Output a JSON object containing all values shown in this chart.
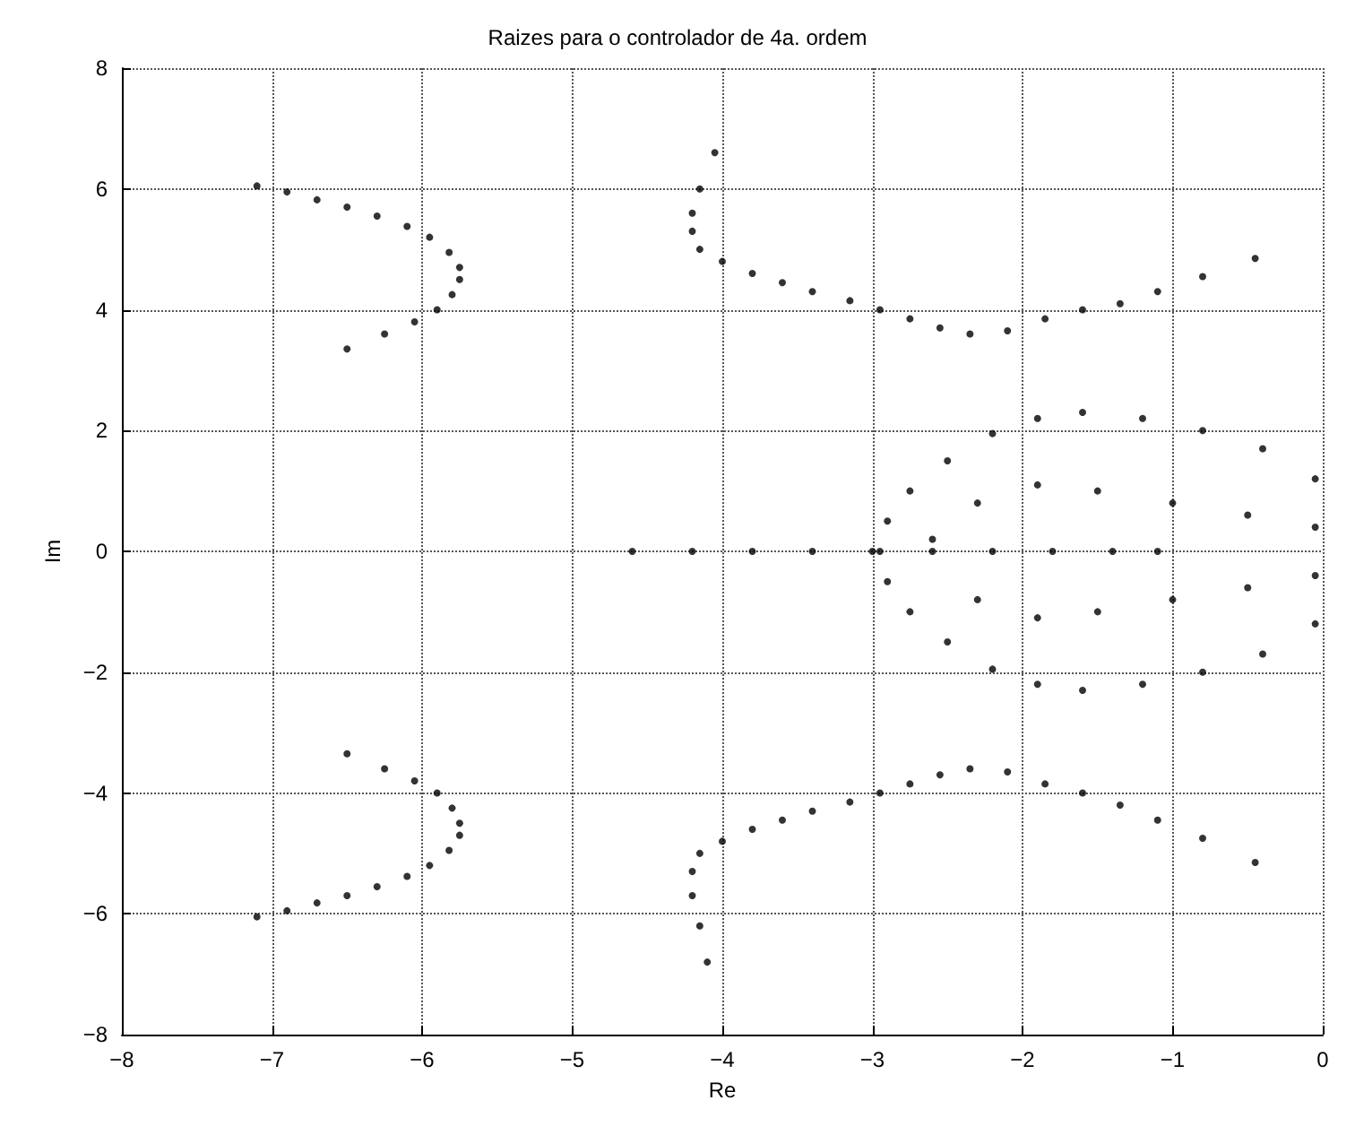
{
  "chart_data": {
    "type": "scatter",
    "title": "Raizes para o controlador de 4a. ordem",
    "xlabel": "Re",
    "ylabel": "Im",
    "xlim": [
      -8,
      0
    ],
    "ylim": [
      -8,
      8
    ],
    "xticks": [
      -8,
      -7,
      -6,
      -5,
      -4,
      -3,
      -2,
      -1,
      0
    ],
    "yticks": [
      -8,
      -6,
      -4,
      -2,
      0,
      2,
      4,
      6,
      8
    ],
    "grid": true,
    "marker": "circle",
    "series": [
      {
        "color": "#000000",
        "x": [
          -7.1,
          -6.9,
          -6.7,
          -6.5,
          -6.3,
          -6.1,
          -5.95,
          -5.82,
          -5.75,
          -5.75,
          -5.8,
          -5.9,
          -6.05,
          -6.25,
          -6.5,
          -7.1,
          -6.9,
          -6.7,
          -6.5,
          -6.3,
          -6.1,
          -5.95,
          -5.82,
          -5.75,
          -5.75,
          -5.8,
          -5.9,
          -6.05,
          -6.25,
          -6.5,
          -4.05,
          -4.15,
          -4.2,
          -4.2,
          -4.15,
          -4.0,
          -3.8,
          -3.6,
          -3.4,
          -3.15,
          -2.95,
          -2.75,
          -2.55,
          -2.35,
          -2.1,
          -1.85,
          -1.6,
          -1.35,
          -1.1,
          -0.8,
          -0.45,
          -4.1,
          -4.15,
          -4.2,
          -4.2,
          -4.15,
          -4.0,
          -3.8,
          -3.6,
          -3.4,
          -3.15,
          -2.95,
          -2.75,
          -2.55,
          -2.35,
          -2.1,
          -1.85,
          -1.6,
          -1.35,
          -1.1,
          -0.8,
          -0.45,
          -4.6,
          -4.2,
          -3.8,
          -3.4,
          -3.0,
          -2.6,
          -2.2,
          -1.8,
          -1.4,
          -1.1,
          -2.95,
          -2.9,
          -2.75,
          -2.5,
          -2.2,
          -1.9,
          -1.6,
          -1.2,
          -0.8,
          -0.4,
          -0.05,
          -2.6,
          -2.3,
          -1.9,
          -1.5,
          -1.0,
          -0.5,
          -0.05,
          -2.9,
          -2.75,
          -2.5,
          -2.2,
          -1.9,
          -1.6,
          -1.2,
          -0.8,
          -0.4,
          -0.05,
          -2.3,
          -1.9,
          -1.5,
          -1.0,
          -0.5,
          -0.05
        ],
        "values": [
          6.05,
          5.95,
          5.82,
          5.7,
          5.55,
          5.38,
          5.2,
          4.95,
          4.7,
          4.5,
          4.25,
          4.0,
          3.8,
          3.6,
          3.35,
          -6.05,
          -5.95,
          -5.82,
          -5.7,
          -5.55,
          -5.38,
          -5.2,
          -4.95,
          -4.7,
          -4.5,
          -4.25,
          -4.0,
          -3.8,
          -3.6,
          -3.35,
          6.6,
          6.0,
          5.6,
          5.3,
          5.0,
          4.8,
          4.6,
          4.45,
          4.3,
          4.15,
          4.0,
          3.85,
          3.7,
          3.6,
          3.65,
          3.85,
          4.0,
          4.1,
          4.3,
          4.55,
          4.85,
          -6.8,
          -6.2,
          -5.7,
          -5.3,
          -5.0,
          -4.8,
          -4.6,
          -4.45,
          -4.3,
          -4.15,
          -4.0,
          -3.85,
          -3.7,
          -3.6,
          -3.65,
          -3.85,
          -4.0,
          -4.2,
          -4.45,
          -4.75,
          -5.15,
          0,
          0,
          0,
          0,
          0,
          0,
          0,
          0,
          0,
          0,
          0,
          0.5,
          1.0,
          1.5,
          1.95,
          2.2,
          2.3,
          2.2,
          2.0,
          1.7,
          1.2,
          0.2,
          0.8,
          1.1,
          1.0,
          0.8,
          0.6,
          0.4,
          -0.5,
          -1.0,
          -1.5,
          -1.95,
          -2.2,
          -2.3,
          -2.2,
          -2.0,
          -1.7,
          -1.2,
          -0.8,
          -1.1,
          -1.0,
          -0.8,
          -0.6,
          -0.4
        ]
      }
    ]
  }
}
